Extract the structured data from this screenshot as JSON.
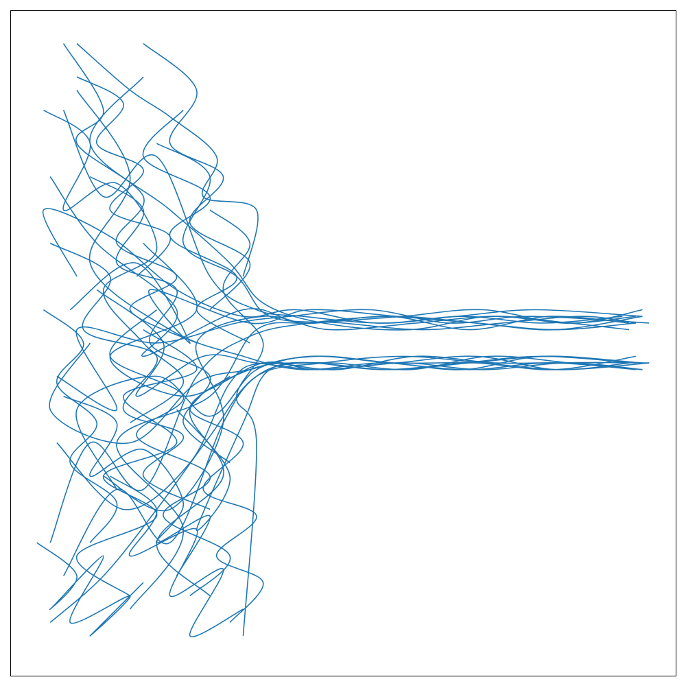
{
  "chart_data": {
    "type": "line",
    "color": "#1f77b4",
    "xlim": [
      0,
      100
    ],
    "ylim": [
      0,
      100
    ],
    "series": [
      {
        "x": [
          8,
          14,
          22,
          30,
          37,
          44,
          56,
          68,
          80,
          92
        ],
        "values": [
          85,
          72,
          78,
          60,
          55,
          54,
          53,
          54,
          53,
          54
        ]
      },
      {
        "x": [
          6,
          12,
          20,
          28,
          36,
          45,
          58,
          70,
          82,
          94
        ],
        "values": [
          20,
          35,
          28,
          45,
          51,
          53,
          54,
          53,
          52,
          53
        ]
      },
      {
        "x": [
          10,
          5,
          15,
          25,
          35,
          43,
          55,
          67,
          79,
          95
        ],
        "values": [
          60,
          70,
          66,
          58,
          54,
          55,
          53,
          54,
          55,
          54
        ]
      },
      {
        "x": [
          20,
          12,
          24,
          33,
          38,
          47,
          60,
          72,
          84,
          93
        ],
        "values": [
          90,
          80,
          70,
          62,
          56,
          53,
          52,
          54,
          53,
          52
        ]
      },
      {
        "x": [
          7,
          16,
          10,
          22,
          34,
          42,
          54,
          66,
          78,
          96
        ],
        "values": [
          45,
          40,
          52,
          50,
          53,
          54,
          55,
          53,
          54,
          53
        ]
      },
      {
        "x": [
          18,
          26,
          16,
          30,
          37,
          46,
          59,
          71,
          83,
          94
        ],
        "values": [
          10,
          22,
          35,
          42,
          52,
          53,
          54,
          55,
          53,
          54
        ]
      },
      {
        "x": [
          6,
          13,
          25,
          20,
          35,
          44,
          57,
          69,
          81,
          93
        ],
        "values": [
          75,
          65,
          55,
          48,
          55,
          53,
          54,
          52,
          54,
          53
        ]
      },
      {
        "x": [
          14,
          24,
          32,
          28,
          38,
          48,
          61,
          73,
          85,
          95
        ],
        "values": [
          30,
          25,
          38,
          50,
          54,
          52,
          53,
          54,
          53,
          55
        ]
      },
      {
        "x": [
          22,
          30,
          26,
          34,
          39,
          50,
          62,
          74,
          86,
          94
        ],
        "values": [
          80,
          75,
          65,
          60,
          54,
          53,
          52,
          53,
          54,
          53
        ]
      },
      {
        "x": [
          9,
          19,
          27,
          21,
          36,
          45,
          58,
          70,
          82,
          95
        ],
        "values": [
          55,
          62,
          50,
          58,
          53,
          55,
          54,
          53,
          52,
          54
        ]
      },
      {
        "x": [
          8,
          16,
          24,
          32,
          37,
          44,
          56,
          68,
          80,
          94
        ],
        "values": [
          15,
          28,
          20,
          38,
          45,
          47,
          46,
          47,
          48,
          47
        ]
      },
      {
        "x": [
          12,
          6,
          18,
          28,
          36,
          45,
          57,
          69,
          81,
          95
        ],
        "values": [
          50,
          40,
          35,
          44,
          46,
          48,
          47,
          46,
          47,
          46
        ]
      },
      {
        "x": [
          20,
          28,
          15,
          26,
          38,
          46,
          58,
          70,
          82,
          93
        ],
        "values": [
          65,
          55,
          48,
          42,
          47,
          46,
          47,
          48,
          46,
          47
        ]
      },
      {
        "x": [
          6,
          14,
          22,
          30,
          37,
          47,
          59,
          71,
          83,
          96
        ],
        "values": [
          8,
          15,
          25,
          36,
          45,
          47,
          48,
          47,
          46,
          47
        ]
      },
      {
        "x": [
          25,
          33,
          28,
          35,
          39,
          48,
          60,
          72,
          84,
          94
        ],
        "values": [
          40,
          30,
          22,
          38,
          46,
          47,
          46,
          48,
          47,
          46
        ]
      },
      {
        "x": [
          10,
          18,
          12,
          24,
          35,
          44,
          56,
          68,
          80,
          95
        ],
        "values": [
          88,
          75,
          62,
          52,
          48,
          46,
          47,
          46,
          48,
          47
        ]
      },
      {
        "x": [
          16,
          10,
          22,
          30,
          37,
          46,
          58,
          70,
          82,
          94
        ],
        "values": [
          28,
          40,
          45,
          39,
          46,
          48,
          47,
          47,
          46,
          48
        ]
      },
      {
        "x": [
          7,
          17,
          27,
          33,
          38,
          49,
          61,
          73,
          85,
          95
        ],
        "values": [
          35,
          25,
          32,
          44,
          47,
          46,
          48,
          47,
          47,
          46
        ]
      },
      {
        "x": [
          30,
          22,
          32,
          27,
          36,
          45,
          57,
          69,
          81,
          93
        ],
        "values": [
          12,
          20,
          30,
          40,
          46,
          47,
          46,
          47,
          48,
          47
        ]
      },
      {
        "x": [
          13,
          23,
          19,
          29,
          37,
          47,
          59,
          71,
          83,
          96
        ],
        "values": [
          58,
          50,
          42,
          48,
          47,
          46,
          47,
          46,
          47,
          47
        ]
      },
      {
        "x": [
          8,
          14,
          10,
          20,
          16,
          25,
          18,
          28
        ],
        "values": [
          95,
          85,
          80,
          72,
          65,
          60,
          55,
          50
        ]
      },
      {
        "x": [
          10,
          18,
          24,
          31,
          29,
          37,
          35
        ],
        "values": [
          95,
          88,
          84,
          78,
          72,
          70,
          60
        ]
      },
      {
        "x": [
          5,
          12,
          8,
          16,
          22,
          14,
          20,
          26,
          18
        ],
        "values": [
          85,
          80,
          70,
          74,
          64,
          58,
          50,
          44,
          38
        ]
      },
      {
        "x": [
          4,
          10,
          6,
          14,
          9,
          18,
          12,
          20
        ],
        "values": [
          20,
          15,
          10,
          18,
          8,
          12,
          6,
          14
        ]
      },
      {
        "x": [
          15,
          22,
          18,
          28,
          24,
          32,
          27,
          35
        ],
        "values": [
          30,
          25,
          18,
          22,
          12,
          16,
          6,
          10
        ]
      },
      {
        "x": [
          30,
          36,
          32,
          38,
          34,
          37,
          35
        ],
        "values": [
          70,
          65,
          58,
          50,
          42,
          35,
          6
        ]
      },
      {
        "x": [
          6,
          15,
          11,
          22,
          17,
          26,
          20,
          30
        ],
        "values": [
          65,
          60,
          52,
          48,
          40,
          36,
          30,
          25
        ]
      },
      {
        "x": [
          20,
          28,
          24,
          32,
          27,
          36,
          30
        ],
        "values": [
          95,
          88,
          80,
          75,
          68,
          62,
          55
        ]
      },
      {
        "x": [
          8,
          16,
          12,
          20,
          26,
          22,
          30,
          25
        ],
        "values": [
          42,
          38,
          30,
          34,
          26,
          20,
          24,
          15
        ]
      },
      {
        "x": [
          12,
          20,
          16,
          25,
          21,
          30,
          26,
          33
        ],
        "values": [
          75,
          70,
          62,
          58,
          50,
          45,
          38,
          32
        ]
      },
      {
        "x": [
          33,
          27,
          35,
          29,
          37,
          31,
          38,
          33
        ],
        "values": [
          45,
          40,
          35,
          28,
          24,
          18,
          14,
          8
        ]
      },
      {
        "x": [
          18,
          10,
          22,
          14,
          25,
          17,
          28,
          20
        ],
        "values": [
          12,
          18,
          24,
          30,
          35,
          42,
          46,
          52
        ]
      },
      {
        "x": [
          5,
          11,
          7,
          13,
          9,
          16,
          12
        ],
        "values": [
          55,
          50,
          44,
          38,
          32,
          26,
          20
        ]
      },
      {
        "x": [
          26,
          20,
          30,
          24,
          34,
          28,
          36
        ],
        "values": [
          85,
          78,
          72,
          66,
          60,
          55,
          50
        ]
      },
      {
        "x": [
          10,
          17,
          13,
          20,
          15,
          24,
          19
        ],
        "values": [
          90,
          86,
          80,
          76,
          70,
          66,
          60
        ]
      },
      {
        "x": [
          22,
          15,
          26,
          19,
          30,
          23,
          33,
          27
        ],
        "values": [
          55,
          48,
          42,
          36,
          30,
          24,
          18,
          12
        ]
      }
    ]
  }
}
